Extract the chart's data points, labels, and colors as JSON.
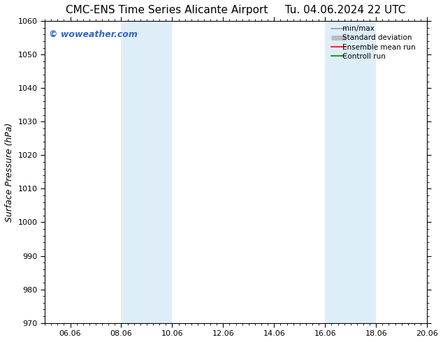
{
  "title": "CMC-ENS Time Series Alicante Airport     Tu. 04.06.2024 22 UTC",
  "ylabel": "Surface Pressure (hPa)",
  "ylim": [
    970,
    1060
  ],
  "yticks": [
    970,
    980,
    990,
    1000,
    1010,
    1020,
    1030,
    1040,
    1050,
    1060
  ],
  "xlim": [
    0.0,
    15.0
  ],
  "xtick_labels": [
    "06.06",
    "08.06",
    "10.06",
    "12.06",
    "14.06",
    "16.06",
    "18.06",
    "20.06"
  ],
  "xtick_positions": [
    1.0,
    3.0,
    5.0,
    7.0,
    9.0,
    11.0,
    13.0,
    15.0
  ],
  "shaded_bands": [
    {
      "xmin": 3.0,
      "xmax": 5.0
    },
    {
      "xmin": 11.0,
      "xmax": 13.0
    }
  ],
  "shaded_color": "#ddeef9",
  "background_color": "#ffffff",
  "watermark_text": "© woweather.com",
  "watermark_color": "#3366cc",
  "legend_entries": [
    {
      "label": "min/max",
      "color": "#999999",
      "lw": 1.2
    },
    {
      "label": "Standard deviation",
      "color": "#bbbbbb",
      "lw": 5
    },
    {
      "label": "Ensemble mean run",
      "color": "#ff0000",
      "lw": 1.2
    },
    {
      "label": "Controll run",
      "color": "#008000",
      "lw": 1.2
    }
  ],
  "title_fontsize": 11,
  "tick_fontsize": 8,
  "ylabel_fontsize": 9,
  "legend_fontsize": 7.5
}
